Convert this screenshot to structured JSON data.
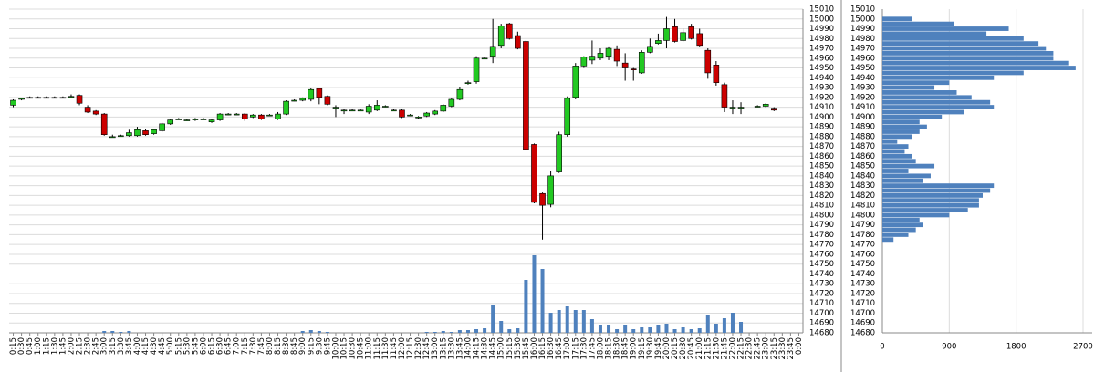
{
  "chart_data": [
    {
      "type": "candlestick",
      "categories": [
        "0:15",
        "0:30",
        "0:45",
        "1:00",
        "1:15",
        "1:30",
        "1:45",
        "2:00",
        "2:15",
        "2:30",
        "2:45",
        "3:00",
        "3:15",
        "3:30",
        "3:45",
        "4:00",
        "4:15",
        "4:30",
        "4:45",
        "5:00",
        "5:15",
        "5:30",
        "5:45",
        "6:00",
        "6:15",
        "6:30",
        "6:45",
        "7:00",
        "7:15",
        "7:30",
        "7:45",
        "8:00",
        "8:15",
        "8:30",
        "8:45",
        "9:00",
        "9:15",
        "9:30",
        "9:45",
        "10:00",
        "10:15",
        "10:30",
        "10:45",
        "11:00",
        "11:15",
        "11:30",
        "11:45",
        "12:00",
        "12:15",
        "12:30",
        "12:45",
        "13:00",
        "13:15",
        "13:30",
        "13:45",
        "14:00",
        "14:15",
        "14:30",
        "14:45",
        "15:00",
        "15:15",
        "15:30",
        "15:45",
        "16:00",
        "16:15",
        "16:30",
        "16:45",
        "17:00",
        "17:15",
        "17:30",
        "17:45",
        "18:00",
        "18:15",
        "18:30",
        "18:45",
        "19:00",
        "19:15",
        "19:30",
        "19:45",
        "20:00",
        "20:15",
        "20:30",
        "20:45",
        "21:00",
        "21:15",
        "21:30",
        "21:45",
        "22:00",
        "22:15",
        "22:30",
        "22:45",
        "23:00",
        "23:15",
        "23:30",
        "23:45",
        "0:00"
      ],
      "open": [
        14912,
        14918,
        14920,
        14920,
        14920,
        14920,
        14920,
        14921,
        14922,
        14910,
        14906,
        14903,
        14880,
        14881,
        14881,
        14881,
        14886,
        14883,
        14886,
        14893,
        14898,
        14897,
        14897,
        14898,
        14895,
        14897,
        14903,
        14903,
        14903,
        14900,
        14902,
        14902,
        14898,
        14903,
        14917,
        14917,
        14918,
        14929,
        14921,
        14910,
        14907,
        14907,
        14907,
        14905,
        14907,
        14911,
        14907,
        14907,
        14902,
        14900,
        14901,
        14903,
        14906,
        14911,
        14918,
        14935,
        14936,
        14960,
        14962,
        14973,
        14995,
        14983,
        14977,
        14872,
        14822,
        14811,
        14844,
        14882,
        14920,
        14952,
        14958,
        14960,
        14962,
        14969,
        14955,
        14949,
        14945,
        14966,
        14975,
        14978,
        14992,
        14978,
        14992,
        14985,
        14968,
        14953,
        14933,
        14910,
        14910,
        null,
        14911,
        14911,
        14909,
        null,
        null,
        null
      ],
      "high": [
        14918,
        14919,
        14921,
        14921,
        14921,
        14921,
        14921,
        14923,
        14923,
        14912,
        14907,
        14904,
        14882,
        14882,
        14887,
        14890,
        14888,
        14888,
        14894,
        14898,
        14899,
        14898,
        14899,
        14899,
        14898,
        14904,
        14904,
        14904,
        14904,
        14903,
        14903,
        14903,
        14905,
        14917,
        14918,
        14920,
        14930,
        14930,
        14922,
        14912,
        14908,
        14908,
        14908,
        14913,
        14917,
        14912,
        14908,
        14908,
        14903,
        14901,
        14905,
        14907,
        14913,
        14919,
        14931,
        14937,
        14962,
        14961,
        15000,
        14995,
        14996,
        14987,
        14978,
        14873,
        14823,
        14845,
        14885,
        14921,
        14955,
        14962,
        14978,
        14970,
        14972,
        14973,
        14965,
        14950,
        14968,
        14980,
        14985,
        15002,
        15000,
        14990,
        14995,
        14990,
        14970,
        14957,
        14935,
        14917,
        14915,
        null,
        14912,
        14914,
        14910,
        null,
        null,
        null
      ],
      "low": [
        14910,
        14917,
        14919,
        14919,
        14919,
        14919,
        14919,
        14920,
        14912,
        14904,
        14902,
        14881,
        14879,
        14880,
        14880,
        14880,
        14881,
        14882,
        14885,
        14892,
        14897,
        14896,
        14896,
        14897,
        14894,
        14896,
        14902,
        14902,
        14896,
        14899,
        14897,
        14901,
        14897,
        14902,
        14916,
        14916,
        14916,
        14913,
        14912,
        14900,
        14903,
        14906,
        14906,
        14903,
        14906,
        14910,
        14906,
        14899,
        14901,
        14898,
        14900,
        14902,
        14905,
        14910,
        14917,
        14933,
        14934,
        14959,
        14955,
        14970,
        14979,
        14969,
        14866,
        14812,
        14775,
        14808,
        14843,
        14880,
        14918,
        14950,
        14954,
        14958,
        14958,
        14952,
        14937,
        14937,
        14944,
        14965,
        14974,
        14970,
        14976,
        14977,
        14979,
        14972,
        14939,
        14932,
        14905,
        14903,
        14903,
        null,
        14910,
        14910,
        14906,
        null,
        null,
        null
      ],
      "close": [
        14917,
        14919,
        14920,
        14920,
        14920,
        14920,
        14920,
        14921,
        14914,
        14905,
        14903,
        14882,
        14880,
        14881,
        14884,
        14887,
        14882,
        14887,
        14893,
        14897,
        14898,
        14897,
        14898,
        14898,
        14897,
        14903,
        14903,
        14903,
        14898,
        14902,
        14898,
        14902,
        14903,
        14916,
        14917,
        14919,
        14928,
        14920,
        14913,
        14910,
        14907,
        14907,
        14907,
        14911,
        14912,
        14911,
        14907,
        14900,
        14902,
        14900,
        14904,
        14906,
        14912,
        14918,
        14928,
        14935,
        14960,
        14960,
        14972,
        14993,
        14980,
        14970,
        14867,
        14813,
        14810,
        14840,
        14882,
        14919,
        14952,
        14961,
        14962,
        14965,
        14970,
        14957,
        14950,
        14948,
        14966,
        14972,
        14978,
        14990,
        14977,
        14986,
        14980,
        14973,
        14945,
        14935,
        14910,
        14910,
        14910,
        null,
        14911,
        14913,
        14907,
        null,
        null,
        null
      ],
      "volume": [
        0,
        0,
        0,
        0,
        0,
        0,
        0,
        0,
        0,
        0,
        0,
        2,
        2,
        1,
        2,
        0,
        0,
        0,
        0,
        0,
        0,
        0,
        0,
        0,
        0,
        0,
        0,
        0,
        0,
        0,
        0,
        0,
        0,
        0,
        0,
        2,
        3,
        2,
        1,
        0,
        0,
        0,
        0,
        0,
        0,
        0,
        0,
        0,
        0,
        0,
        1,
        1,
        2,
        1,
        3,
        3,
        4,
        5,
        31,
        13,
        4,
        5,
        58,
        85,
        70,
        22,
        25,
        29,
        25,
        25,
        15,
        9,
        9,
        4,
        9,
        4,
        6,
        6,
        9,
        10,
        4,
        6,
        4,
        5,
        20,
        10,
        16,
        22,
        12,
        0,
        0,
        0,
        0,
        0,
        0,
        0
      ],
      "up_color": "#22c922",
      "down_color": "#cc0000",
      "volume_color": "#4f81bd",
      "ylim": [
        14680,
        15010
      ],
      "yticks": [
        15010,
        15000,
        14990,
        14980,
        14970,
        14960,
        14950,
        14940,
        14930,
        14920,
        14910,
        14900,
        14890,
        14880,
        14870,
        14860,
        14850,
        14840,
        14830,
        14820,
        14810,
        14800,
        14790,
        14780,
        14770,
        14760,
        14750,
        14740,
        14730,
        14720,
        14710,
        14700,
        14690,
        14680
      ],
      "grid": true
    },
    {
      "type": "profile",
      "y": [
        15000,
        14995,
        14990,
        14985,
        14980,
        14975,
        14970,
        14965,
        14960,
        14955,
        14950,
        14945,
        14940,
        14935,
        14930,
        14925,
        14920,
        14915,
        14910,
        14905,
        14900,
        14895,
        14890,
        14885,
        14880,
        14875,
        14870,
        14865,
        14860,
        14855,
        14850,
        14845,
        14840,
        14835,
        14830,
        14825,
        14820,
        14815,
        14810,
        14805,
        14800,
        14795,
        14790,
        14785,
        14780,
        14775
      ],
      "values": [
        400,
        960,
        1700,
        1400,
        1900,
        2100,
        2200,
        2300,
        2300,
        2500,
        2600,
        1900,
        1500,
        900,
        700,
        1000,
        1200,
        1450,
        1500,
        1100,
        800,
        500,
        600,
        500,
        400,
        200,
        350,
        300,
        400,
        450,
        700,
        350,
        650,
        550,
        1500,
        1450,
        1350,
        1300,
        1300,
        1150,
        900,
        500,
        550,
        450,
        350,
        150
      ],
      "color": "#4f81bd",
      "xlim": [
        0,
        2700
      ],
      "xticks": [
        0,
        900,
        1800,
        2700
      ],
      "ylim": [
        14680,
        15010
      ],
      "yticks": [
        15010,
        15000,
        14990,
        14980,
        14970,
        14960,
        14950,
        14940,
        14930,
        14920,
        14910,
        14900,
        14890,
        14880,
        14870,
        14860,
        14850,
        14840,
        14830,
        14820,
        14810,
        14800,
        14790,
        14780,
        14770,
        14760,
        14750,
        14740,
        14730,
        14720,
        14710,
        14700,
        14690,
        14680
      ],
      "grid": true
    }
  ]
}
